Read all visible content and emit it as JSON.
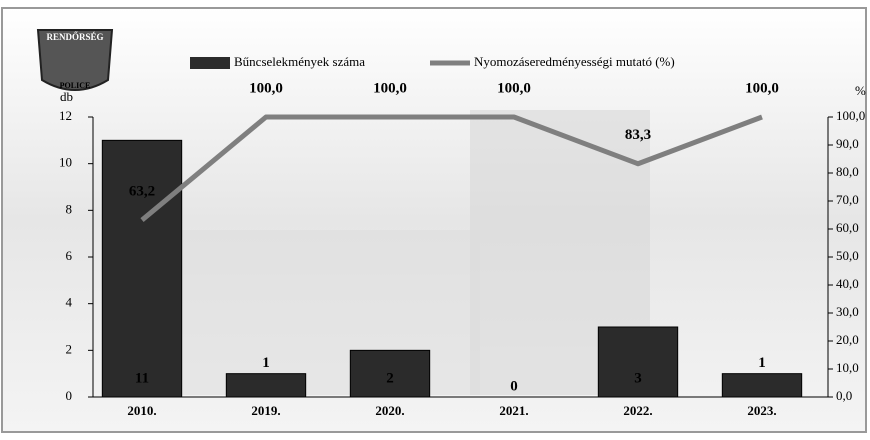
{
  "logo": {
    "top": "RENDŐRSÉG",
    "bottom": "POLICE"
  },
  "chart_data": {
    "type": "bar",
    "categories": [
      "2010.",
      "2019.",
      "2020.",
      "2021.",
      "2022.",
      "2023."
    ],
    "ylabel": "db",
    "y2label": "%",
    "series": [
      {
        "name": "Bűncselekmények száma",
        "color": "#2b2b2b",
        "values": [
          11,
          1,
          2,
          0,
          3,
          1
        ]
      },
      {
        "name": "Nyomozáseredményességi mutató (%)",
        "type": "line",
        "axis": "y2",
        "color": "#7f7f7f",
        "values": [
          63.2,
          100,
          100,
          100,
          83.3,
          100
        ],
        "value_labels": [
          "63,2",
          "100,0",
          "100,0",
          "100,0",
          "83,3",
          "100,0"
        ]
      }
    ],
    "ylim": [
      0,
      12
    ],
    "yticks": [
      0,
      2,
      4,
      6,
      8,
      10,
      12
    ],
    "y2lim": [
      0,
      100
    ],
    "y2ticks": [
      {
        "value": 0,
        "label": "0,0"
      },
      {
        "value": 10,
        "label": "10,0"
      },
      {
        "value": 20,
        "label": "20,0"
      },
      {
        "value": 30,
        "label": "30,0"
      },
      {
        "value": 40,
        "label": "40,0"
      },
      {
        "value": 50,
        "label": "50,0"
      },
      {
        "value": 60,
        "label": "60,0"
      },
      {
        "value": 70,
        "label": "70,0"
      },
      {
        "value": 80,
        "label": "80,0"
      },
      {
        "value": 90,
        "label": "90,0"
      },
      {
        "value": 100,
        "label": "100,0"
      }
    ],
    "grid": false
  }
}
